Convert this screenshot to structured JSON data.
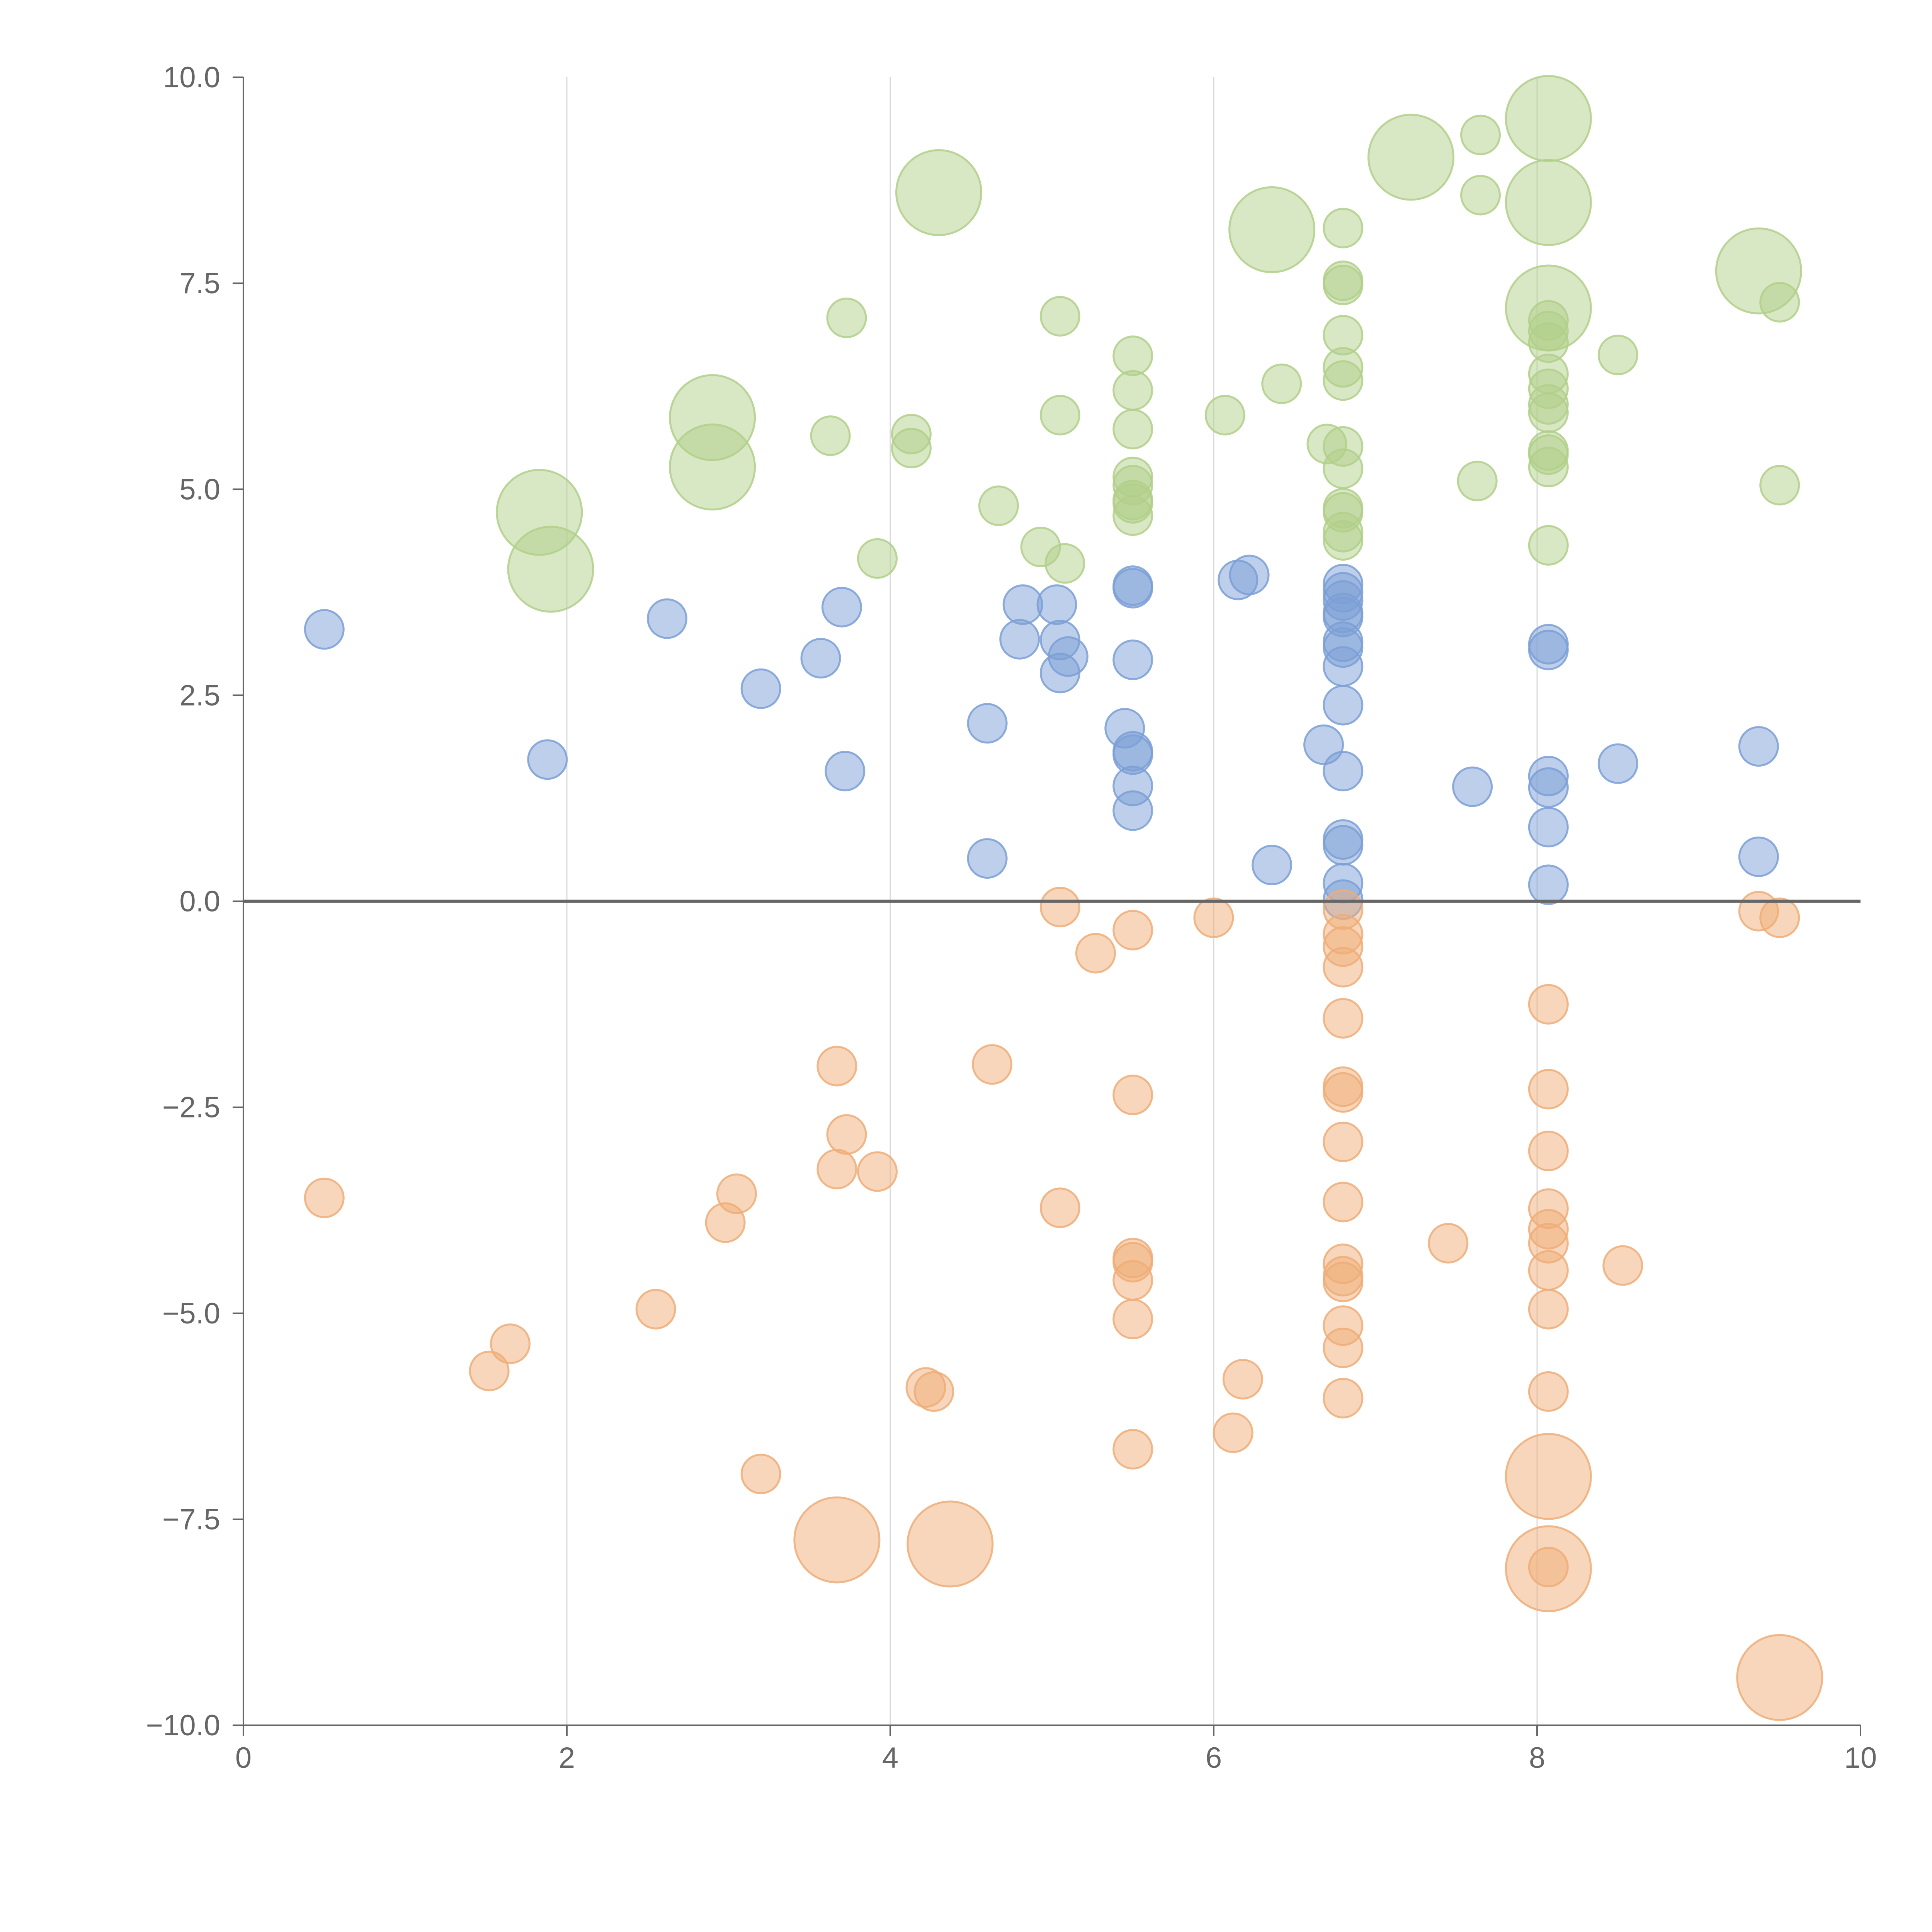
{
  "chart_data": {
    "type": "scatter",
    "title": "",
    "xlabel": "",
    "ylabel": "",
    "xlim": [
      0,
      10
    ],
    "ylim": [
      -10,
      10
    ],
    "grid": "vertical",
    "legend": "none",
    "zero_line": 0,
    "x_ticks": [
      "0",
      "2",
      "4",
      "6",
      "8",
      "10"
    ],
    "y_ticks": [
      "10.0",
      "7.5",
      "5.0",
      "2.5",
      "0.0",
      "−2.5",
      "−5.0",
      "−7.5",
      "−10.0"
    ],
    "colors": {
      "blue": "#7b9fd6",
      "orange": "#efad78",
      "green": "#b2cf8a",
      "axis": "#666666",
      "grid": "#d9d9d9"
    },
    "series": [
      {
        "name": "blue",
        "color": "#7b9fd6",
        "points": [
          {
            "x": 0.5,
            "y": 3.3,
            "r": 1
          },
          {
            "x": 1.88,
            "y": 1.72,
            "r": 1
          },
          {
            "x": 2.62,
            "y": 3.43,
            "r": 1
          },
          {
            "x": 3.2,
            "y": 2.58,
            "r": 1
          },
          {
            "x": 3.57,
            "y": 2.95,
            "r": 1
          },
          {
            "x": 3.7,
            "y": 3.57,
            "r": 1
          },
          {
            "x": 3.72,
            "y": 1.58,
            "r": 1
          },
          {
            "x": 4.6,
            "y": 2.16,
            "r": 1
          },
          {
            "x": 4.6,
            "y": 0.52,
            "r": 1
          },
          {
            "x": 4.8,
            "y": 3.18,
            "r": 1
          },
          {
            "x": 4.82,
            "y": 3.6,
            "r": 1
          },
          {
            "x": 5.03,
            "y": 3.6,
            "r": 1
          },
          {
            "x": 5.05,
            "y": 3.17,
            "r": 1
          },
          {
            "x": 5.05,
            "y": 2.77,
            "r": 1
          },
          {
            "x": 5.1,
            "y": 2.97,
            "r": 1
          },
          {
            "x": 5.45,
            "y": 2.1,
            "r": 1
          },
          {
            "x": 5.5,
            "y": 3.8,
            "r": 1
          },
          {
            "x": 5.5,
            "y": 3.83,
            "r": 1
          },
          {
            "x": 5.5,
            "y": 2.93,
            "r": 1
          },
          {
            "x": 5.5,
            "y": 1.82,
            "r": 1
          },
          {
            "x": 5.5,
            "y": 1.78,
            "r": 1
          },
          {
            "x": 5.5,
            "y": 1.4,
            "r": 1
          },
          {
            "x": 5.5,
            "y": 1.1,
            "r": 1
          },
          {
            "x": 6.15,
            "y": 3.9,
            "r": 1
          },
          {
            "x": 6.22,
            "y": 3.96,
            "r": 1
          },
          {
            "x": 6.36,
            "y": 0.44,
            "r": 1
          },
          {
            "x": 6.68,
            "y": 1.9,
            "r": 1
          },
          {
            "x": 6.8,
            "y": 3.85,
            "r": 1
          },
          {
            "x": 6.8,
            "y": 3.75,
            "r": 1
          },
          {
            "x": 6.8,
            "y": 3.65,
            "r": 1
          },
          {
            "x": 6.8,
            "y": 3.5,
            "r": 1
          },
          {
            "x": 6.8,
            "y": 3.45,
            "r": 1
          },
          {
            "x": 6.8,
            "y": 3.15,
            "r": 1
          },
          {
            "x": 6.8,
            "y": 3.08,
            "r": 1
          },
          {
            "x": 6.8,
            "y": 2.85,
            "r": 1
          },
          {
            "x": 6.8,
            "y": 2.38,
            "r": 1
          },
          {
            "x": 6.8,
            "y": 1.58,
            "r": 1
          },
          {
            "x": 6.8,
            "y": 0.75,
            "r": 1
          },
          {
            "x": 6.8,
            "y": 0.68,
            "r": 1
          },
          {
            "x": 6.8,
            "y": 0.22,
            "r": 1
          },
          {
            "x": 6.8,
            "y": 0.02,
            "r": 1
          },
          {
            "x": 7.6,
            "y": 1.39,
            "r": 1
          },
          {
            "x": 8.07,
            "y": 3.12,
            "r": 1
          },
          {
            "x": 8.07,
            "y": 3.05,
            "r": 1
          },
          {
            "x": 8.07,
            "y": 1.52,
            "r": 1
          },
          {
            "x": 8.07,
            "y": 1.38,
            "r": 1
          },
          {
            "x": 8.07,
            "y": 0.9,
            "r": 1
          },
          {
            "x": 8.07,
            "y": 0.2,
            "r": 1
          },
          {
            "x": 8.5,
            "y": 1.67,
            "r": 1
          },
          {
            "x": 9.37,
            "y": 1.88,
            "r": 1
          },
          {
            "x": 9.37,
            "y": 0.54,
            "r": 1
          }
        ]
      },
      {
        "name": "orange",
        "color": "#efad78",
        "points": [
          {
            "x": 0.5,
            "y": -3.6,
            "r": 1
          },
          {
            "x": 1.52,
            "y": -5.7,
            "r": 1
          },
          {
            "x": 1.65,
            "y": -5.37,
            "r": 1
          },
          {
            "x": 2.55,
            "y": -4.95,
            "r": 1
          },
          {
            "x": 2.98,
            "y": -3.9,
            "r": 1
          },
          {
            "x": 3.05,
            "y": -3.55,
            "r": 1
          },
          {
            "x": 3.2,
            "y": -6.95,
            "r": 1
          },
          {
            "x": 3.67,
            "y": -2.0,
            "r": 1
          },
          {
            "x": 3.67,
            "y": -3.25,
            "r": 1
          },
          {
            "x": 3.73,
            "y": -2.83,
            "r": 1
          },
          {
            "x": 3.92,
            "y": -3.28,
            "r": 1
          },
          {
            "x": 3.67,
            "y": -7.75,
            "r": 2.2
          },
          {
            "x": 4.22,
            "y": -5.9,
            "r": 1
          },
          {
            "x": 4.27,
            "y": -5.95,
            "r": 1
          },
          {
            "x": 4.37,
            "y": -7.8,
            "r": 2.2
          },
          {
            "x": 4.63,
            "y": -1.98,
            "r": 1
          },
          {
            "x": 5.05,
            "y": -0.07,
            "r": 1
          },
          {
            "x": 5.05,
            "y": -3.72,
            "r": 1
          },
          {
            "x": 5.27,
            "y": -0.63,
            "r": 1
          },
          {
            "x": 5.5,
            "y": -0.35,
            "r": 1
          },
          {
            "x": 5.5,
            "y": -2.35,
            "r": 1
          },
          {
            "x": 5.5,
            "y": -4.33,
            "r": 1
          },
          {
            "x": 5.5,
            "y": -4.38,
            "r": 1
          },
          {
            "x": 5.5,
            "y": -4.6,
            "r": 1
          },
          {
            "x": 5.5,
            "y": -5.07,
            "r": 1
          },
          {
            "x": 5.5,
            "y": -6.65,
            "r": 1
          },
          {
            "x": 6.0,
            "y": -0.2,
            "r": 1
          },
          {
            "x": 6.12,
            "y": -6.45,
            "r": 1
          },
          {
            "x": 6.18,
            "y": -5.8,
            "r": 1
          },
          {
            "x": 6.8,
            "y": -0.1,
            "r": 1
          },
          {
            "x": 6.8,
            "y": -0.4,
            "r": 1
          },
          {
            "x": 6.8,
            "y": -0.55,
            "r": 1
          },
          {
            "x": 6.8,
            "y": -0.8,
            "r": 1
          },
          {
            "x": 6.8,
            "y": -1.42,
            "r": 1
          },
          {
            "x": 6.8,
            "y": -2.25,
            "r": 1
          },
          {
            "x": 6.8,
            "y": -2.32,
            "r": 1
          },
          {
            "x": 6.8,
            "y": -2.92,
            "r": 1
          },
          {
            "x": 6.8,
            "y": -3.65,
            "r": 1
          },
          {
            "x": 6.8,
            "y": -4.4,
            "r": 1
          },
          {
            "x": 6.8,
            "y": -4.55,
            "r": 1
          },
          {
            "x": 6.8,
            "y": -4.62,
            "r": 1
          },
          {
            "x": 6.8,
            "y": -5.15,
            "r": 1
          },
          {
            "x": 6.8,
            "y": -5.42,
            "r": 1
          },
          {
            "x": 6.8,
            "y": -6.03,
            "r": 1
          },
          {
            "x": 7.45,
            "y": -4.15,
            "r": 1
          },
          {
            "x": 8.07,
            "y": -1.25,
            "r": 1
          },
          {
            "x": 8.07,
            "y": -2.28,
            "r": 1
          },
          {
            "x": 8.07,
            "y": -3.03,
            "r": 1
          },
          {
            "x": 8.07,
            "y": -3.73,
            "r": 1
          },
          {
            "x": 8.07,
            "y": -3.98,
            "r": 1
          },
          {
            "x": 8.07,
            "y": -4.15,
            "r": 1
          },
          {
            "x": 8.07,
            "y": -4.48,
            "r": 1
          },
          {
            "x": 8.07,
            "y": -4.95,
            "r": 1
          },
          {
            "x": 8.07,
            "y": -5.95,
            "r": 1
          },
          {
            "x": 8.07,
            "y": -6.98,
            "r": 2.2
          },
          {
            "x": 8.07,
            "y": -8.08,
            "r": 1
          },
          {
            "x": 8.07,
            "y": -8.1,
            "r": 2.2
          },
          {
            "x": 8.53,
            "y": -4.42,
            "r": 1
          },
          {
            "x": 9.37,
            "y": -0.12,
            "r": 1
          },
          {
            "x": 9.5,
            "y": -0.2,
            "r": 1
          },
          {
            "x": 9.5,
            "y": -9.42,
            "r": 2.2
          }
        ]
      },
      {
        "name": "green",
        "color": "#b2cf8a",
        "points": [
          {
            "x": 1.83,
            "y": 4.72,
            "r": 2.2
          },
          {
            "x": 1.9,
            "y": 4.03,
            "r": 2.2
          },
          {
            "x": 2.9,
            "y": 5.87,
            "r": 2.2
          },
          {
            "x": 2.9,
            "y": 5.27,
            "r": 2.2
          },
          {
            "x": 3.63,
            "y": 5.65,
            "r": 1
          },
          {
            "x": 3.73,
            "y": 7.08,
            "r": 1
          },
          {
            "x": 3.92,
            "y": 4.16,
            "r": 1
          },
          {
            "x": 4.13,
            "y": 5.67,
            "r": 1
          },
          {
            "x": 4.13,
            "y": 5.5,
            "r": 1
          },
          {
            "x": 4.3,
            "y": 8.6,
            "r": 2.2
          },
          {
            "x": 4.67,
            "y": 4.8,
            "r": 1
          },
          {
            "x": 4.93,
            "y": 4.3,
            "r": 1
          },
          {
            "x": 5.05,
            "y": 7.1,
            "r": 1
          },
          {
            "x": 5.05,
            "y": 5.9,
            "r": 1
          },
          {
            "x": 5.08,
            "y": 4.1,
            "r": 1
          },
          {
            "x": 5.5,
            "y": 6.62,
            "r": 1
          },
          {
            "x": 5.5,
            "y": 6.2,
            "r": 1
          },
          {
            "x": 5.5,
            "y": 5.73,
            "r": 1
          },
          {
            "x": 5.5,
            "y": 5.15,
            "r": 1
          },
          {
            "x": 5.5,
            "y": 5.05,
            "r": 1
          },
          {
            "x": 5.5,
            "y": 4.87,
            "r": 1
          },
          {
            "x": 5.5,
            "y": 4.83,
            "r": 1
          },
          {
            "x": 5.5,
            "y": 4.68,
            "r": 1
          },
          {
            "x": 6.07,
            "y": 5.9,
            "r": 1
          },
          {
            "x": 6.36,
            "y": 8.15,
            "r": 2.2
          },
          {
            "x": 6.42,
            "y": 6.28,
            "r": 1
          },
          {
            "x": 6.7,
            "y": 5.55,
            "r": 1
          },
          {
            "x": 6.8,
            "y": 8.17,
            "r": 1
          },
          {
            "x": 6.8,
            "y": 7.53,
            "r": 1
          },
          {
            "x": 6.8,
            "y": 7.48,
            "r": 1
          },
          {
            "x": 6.8,
            "y": 6.87,
            "r": 1
          },
          {
            "x": 6.8,
            "y": 6.48,
            "r": 1
          },
          {
            "x": 6.8,
            "y": 6.32,
            "r": 1
          },
          {
            "x": 6.8,
            "y": 5.52,
            "r": 1
          },
          {
            "x": 6.8,
            "y": 5.25,
            "r": 1
          },
          {
            "x": 6.8,
            "y": 4.77,
            "r": 1
          },
          {
            "x": 6.8,
            "y": 4.72,
            "r": 1
          },
          {
            "x": 6.8,
            "y": 4.48,
            "r": 1
          },
          {
            "x": 6.8,
            "y": 4.38,
            "r": 1
          },
          {
            "x": 7.22,
            "y": 9.03,
            "r": 2.2
          },
          {
            "x": 7.63,
            "y": 5.1,
            "r": 1
          },
          {
            "x": 7.65,
            "y": 9.3,
            "r": 1
          },
          {
            "x": 7.65,
            "y": 8.57,
            "r": 1
          },
          {
            "x": 8.07,
            "y": 9.5,
            "r": 2.2
          },
          {
            "x": 8.07,
            "y": 8.48,
            "r": 2.2
          },
          {
            "x": 8.07,
            "y": 7.2,
            "r": 2.2
          },
          {
            "x": 8.07,
            "y": 7.05,
            "r": 1
          },
          {
            "x": 8.07,
            "y": 6.92,
            "r": 1
          },
          {
            "x": 8.07,
            "y": 6.78,
            "r": 1
          },
          {
            "x": 8.07,
            "y": 6.4,
            "r": 1
          },
          {
            "x": 8.07,
            "y": 6.22,
            "r": 1
          },
          {
            "x": 8.07,
            "y": 6.03,
            "r": 1
          },
          {
            "x": 8.07,
            "y": 5.93,
            "r": 1
          },
          {
            "x": 8.07,
            "y": 5.47,
            "r": 1
          },
          {
            "x": 8.07,
            "y": 5.42,
            "r": 1
          },
          {
            "x": 8.07,
            "y": 5.27,
            "r": 1
          },
          {
            "x": 8.07,
            "y": 4.32,
            "r": 1
          },
          {
            "x": 8.5,
            "y": 6.63,
            "r": 1
          },
          {
            "x": 9.37,
            "y": 7.65,
            "r": 2.2
          },
          {
            "x": 9.5,
            "y": 7.27,
            "r": 1
          },
          {
            "x": 9.5,
            "y": 5.05,
            "r": 1
          }
        ]
      }
    ]
  }
}
